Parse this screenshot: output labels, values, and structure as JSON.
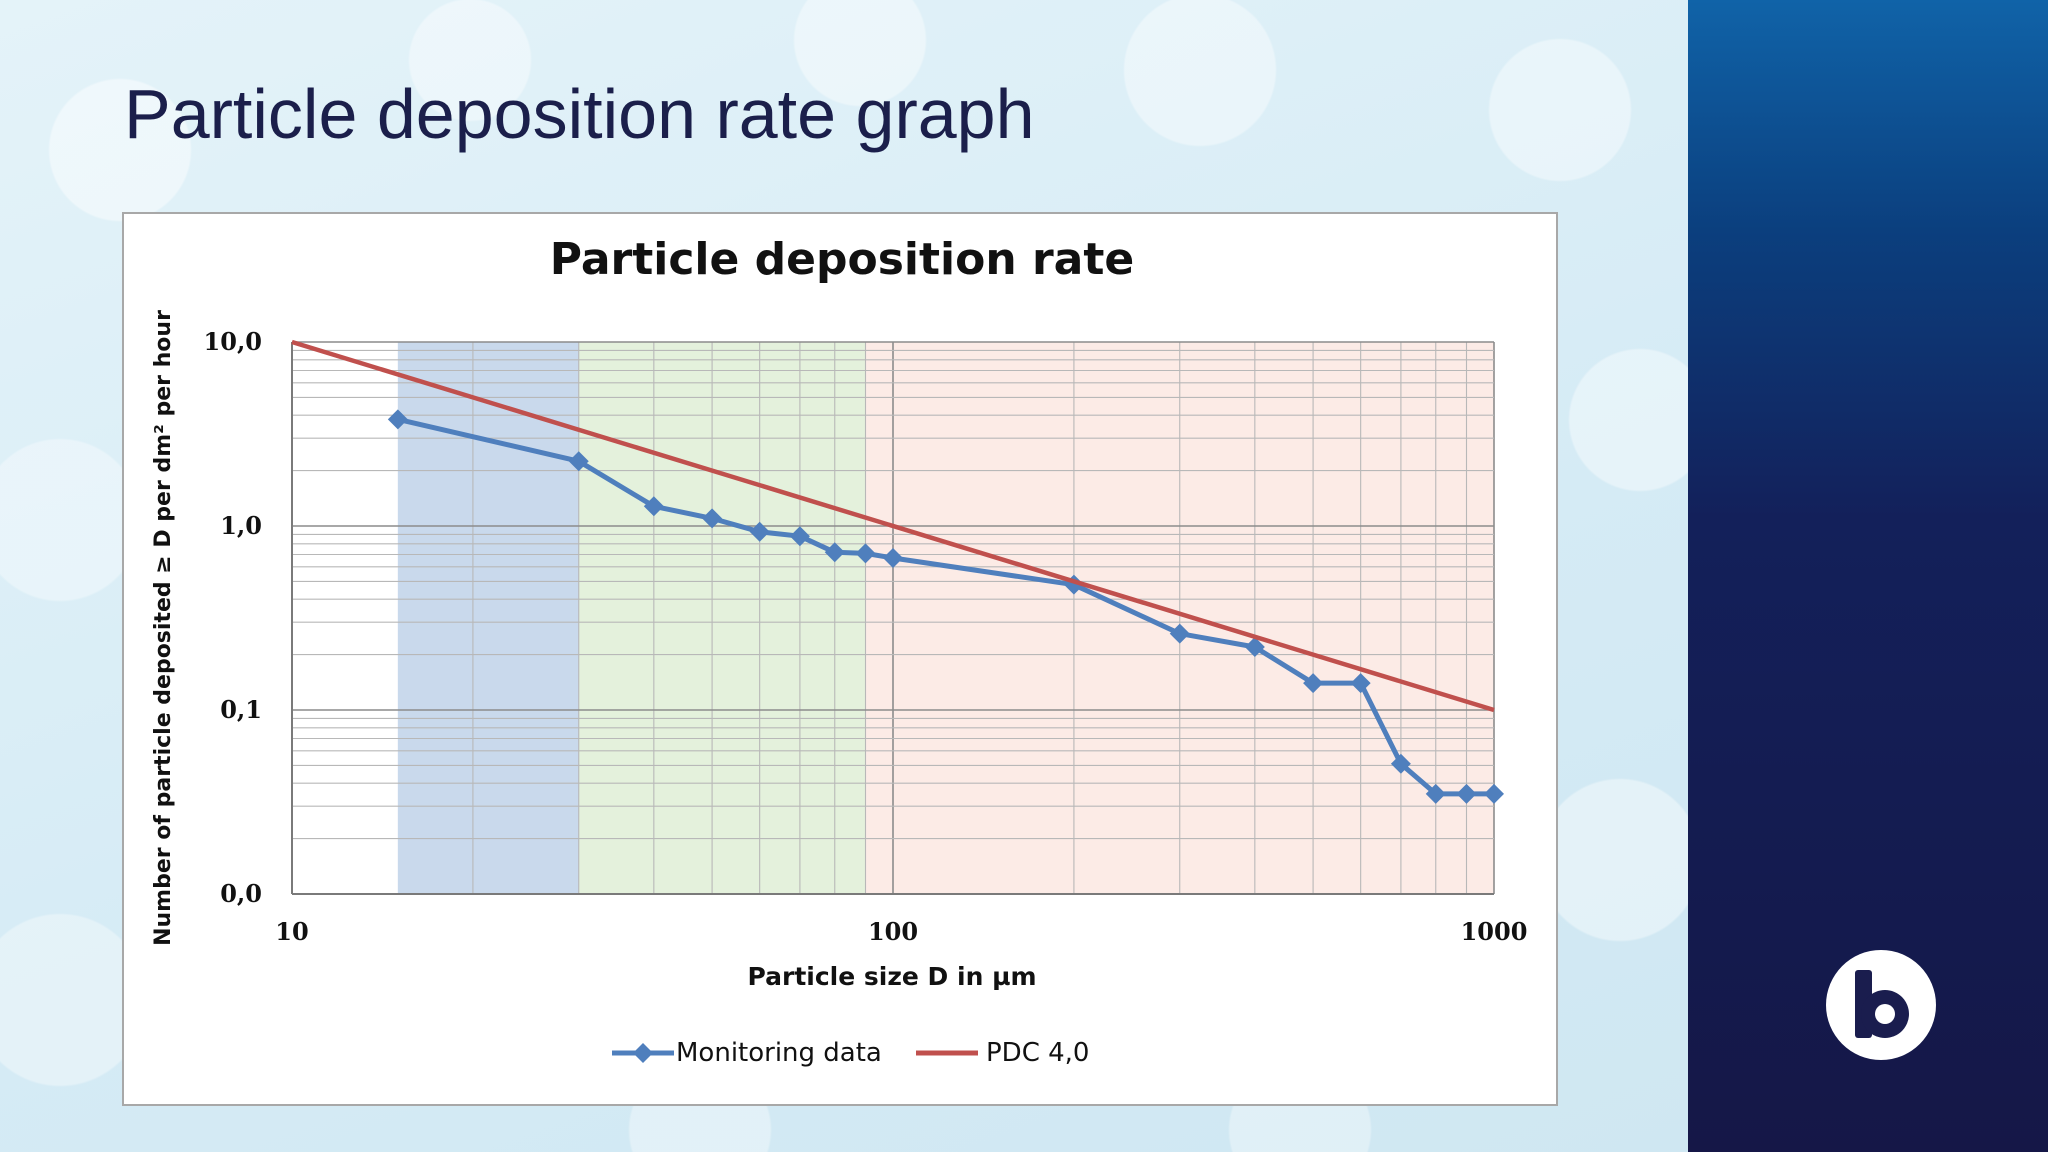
{
  "slide": {
    "title": "Particle deposition rate graph"
  },
  "logo": {
    "icon": "b-logo-icon"
  },
  "chart_data": {
    "type": "line",
    "title": "Particle deposition rate",
    "xlabel": "Particle size D in µm",
    "ylabel": "Number of particle deposited ≥ D per dm² per hour",
    "x_scale": "log",
    "y_scale": "log",
    "xlim": [
      10,
      1000
    ],
    "ylim": [
      0.01,
      10
    ],
    "x_ticks": [
      {
        "value": 10,
        "label": "10"
      },
      {
        "value": 100,
        "label": "100"
      },
      {
        "value": 1000,
        "label": "1000"
      }
    ],
    "y_ticks": [
      {
        "value": 0.01,
        "label": "0,0"
      },
      {
        "value": 0.1,
        "label": "0,1"
      },
      {
        "value": 1,
        "label": "1,0"
      },
      {
        "value": 10,
        "label": "10,0"
      }
    ],
    "grid": true,
    "legend": "bottom",
    "bands": [
      {
        "from": 15,
        "to": 30,
        "color": "#c9d9ec"
      },
      {
        "from": 30,
        "to": 90,
        "color": "#e4f1dc"
      },
      {
        "from": 90,
        "to": 1000,
        "color": "#fcebe6"
      }
    ],
    "series": [
      {
        "name": "Monitoring data",
        "color": "#4f7fbd",
        "marker": "diamond",
        "x": [
          15,
          30,
          40,
          50,
          60,
          70,
          80,
          90,
          100,
          200,
          300,
          400,
          500,
          600,
          700,
          800,
          900,
          1000
        ],
        "y": [
          3.8,
          2.25,
          1.28,
          1.1,
          0.93,
          0.88,
          0.72,
          0.71,
          0.67,
          0.48,
          0.26,
          0.22,
          0.14,
          0.14,
          0.051,
          0.035,
          0.035,
          0.035
        ]
      },
      {
        "name": "PDC 4,0",
        "color": "#c0504d",
        "marker": "none",
        "x": [
          10,
          1000
        ],
        "y": [
          10,
          0.1
        ]
      }
    ]
  }
}
